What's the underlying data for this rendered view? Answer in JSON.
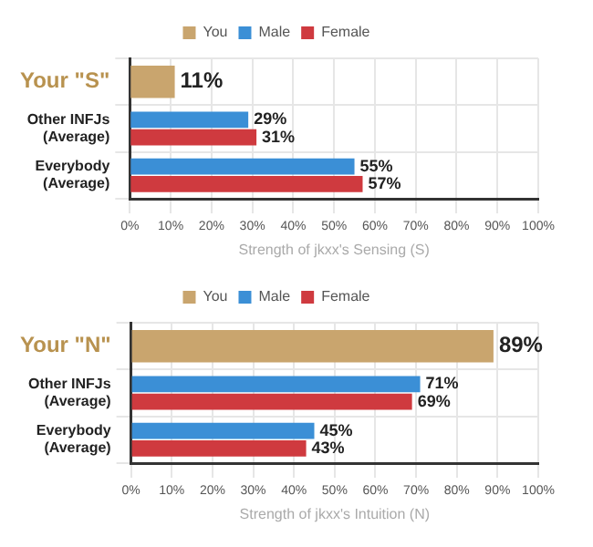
{
  "chart_data": [
    {
      "type": "bar",
      "orientation": "horizontal",
      "xlabel": "Strength of jkxx's Sensing (S)",
      "categories": [
        "Your \"S\"",
        "Other INFJs\n(Average)",
        "Everybody\n(Average)"
      ],
      "series": [
        {
          "name": "You",
          "color": "#c9a56e",
          "values": [
            11,
            null,
            null
          ]
        },
        {
          "name": "Male",
          "color": "#3b8fd6",
          "values": [
            null,
            29,
            55
          ]
        },
        {
          "name": "Female",
          "color": "#cf3a3f",
          "values": [
            null,
            31,
            57
          ]
        }
      ],
      "xlim": [
        0,
        100
      ],
      "xticks": [
        {
          "value": 0,
          "label": "0%"
        },
        {
          "value": 10,
          "label": "10%"
        },
        {
          "value": 20,
          "label": "20%"
        },
        {
          "value": 30,
          "label": "30%"
        },
        {
          "value": 40,
          "label": "40%"
        },
        {
          "value": 50,
          "label": "50%"
        },
        {
          "value": 60,
          "label": "60%"
        },
        {
          "value": 70,
          "label": "70%"
        },
        {
          "value": 80,
          "label": "80%"
        },
        {
          "value": 90,
          "label": "90%"
        },
        {
          "value": 100,
          "label": "100%"
        }
      ],
      "value_labels": [
        [
          "11%",
          null,
          null
        ],
        [
          null,
          "29%",
          "55%"
        ],
        [
          null,
          "31%",
          "57%"
        ]
      ],
      "grid": true,
      "legend": "top"
    },
    {
      "type": "bar",
      "orientation": "horizontal",
      "xlabel": "Strength of jkxx's Intuition (N)",
      "categories": [
        "Your \"N\"",
        "Other INFJs\n(Average)",
        "Everybody\n(Average)"
      ],
      "series": [
        {
          "name": "You",
          "color": "#c9a56e",
          "values": [
            89,
            null,
            null
          ]
        },
        {
          "name": "Male",
          "color": "#3b8fd6",
          "values": [
            null,
            71,
            45
          ]
        },
        {
          "name": "Female",
          "color": "#cf3a3f",
          "values": [
            null,
            69,
            43
          ]
        }
      ],
      "xlim": [
        0,
        100
      ],
      "xticks": [
        {
          "value": 0,
          "label": "0%"
        },
        {
          "value": 10,
          "label": "10%"
        },
        {
          "value": 20,
          "label": "20%"
        },
        {
          "value": 30,
          "label": "30%"
        },
        {
          "value": 40,
          "label": "40%"
        },
        {
          "value": 50,
          "label": "50%"
        },
        {
          "value": 60,
          "label": "60%"
        },
        {
          "value": 70,
          "label": "70%"
        },
        {
          "value": 80,
          "label": "80%"
        },
        {
          "value": 90,
          "label": "90%"
        },
        {
          "value": 100,
          "label": "100%"
        }
      ],
      "value_labels": [
        [
          "89%",
          null,
          null
        ],
        [
          null,
          "71%",
          "45%"
        ],
        [
          null,
          "69%",
          "43%"
        ]
      ],
      "grid": true,
      "legend": "top"
    }
  ]
}
